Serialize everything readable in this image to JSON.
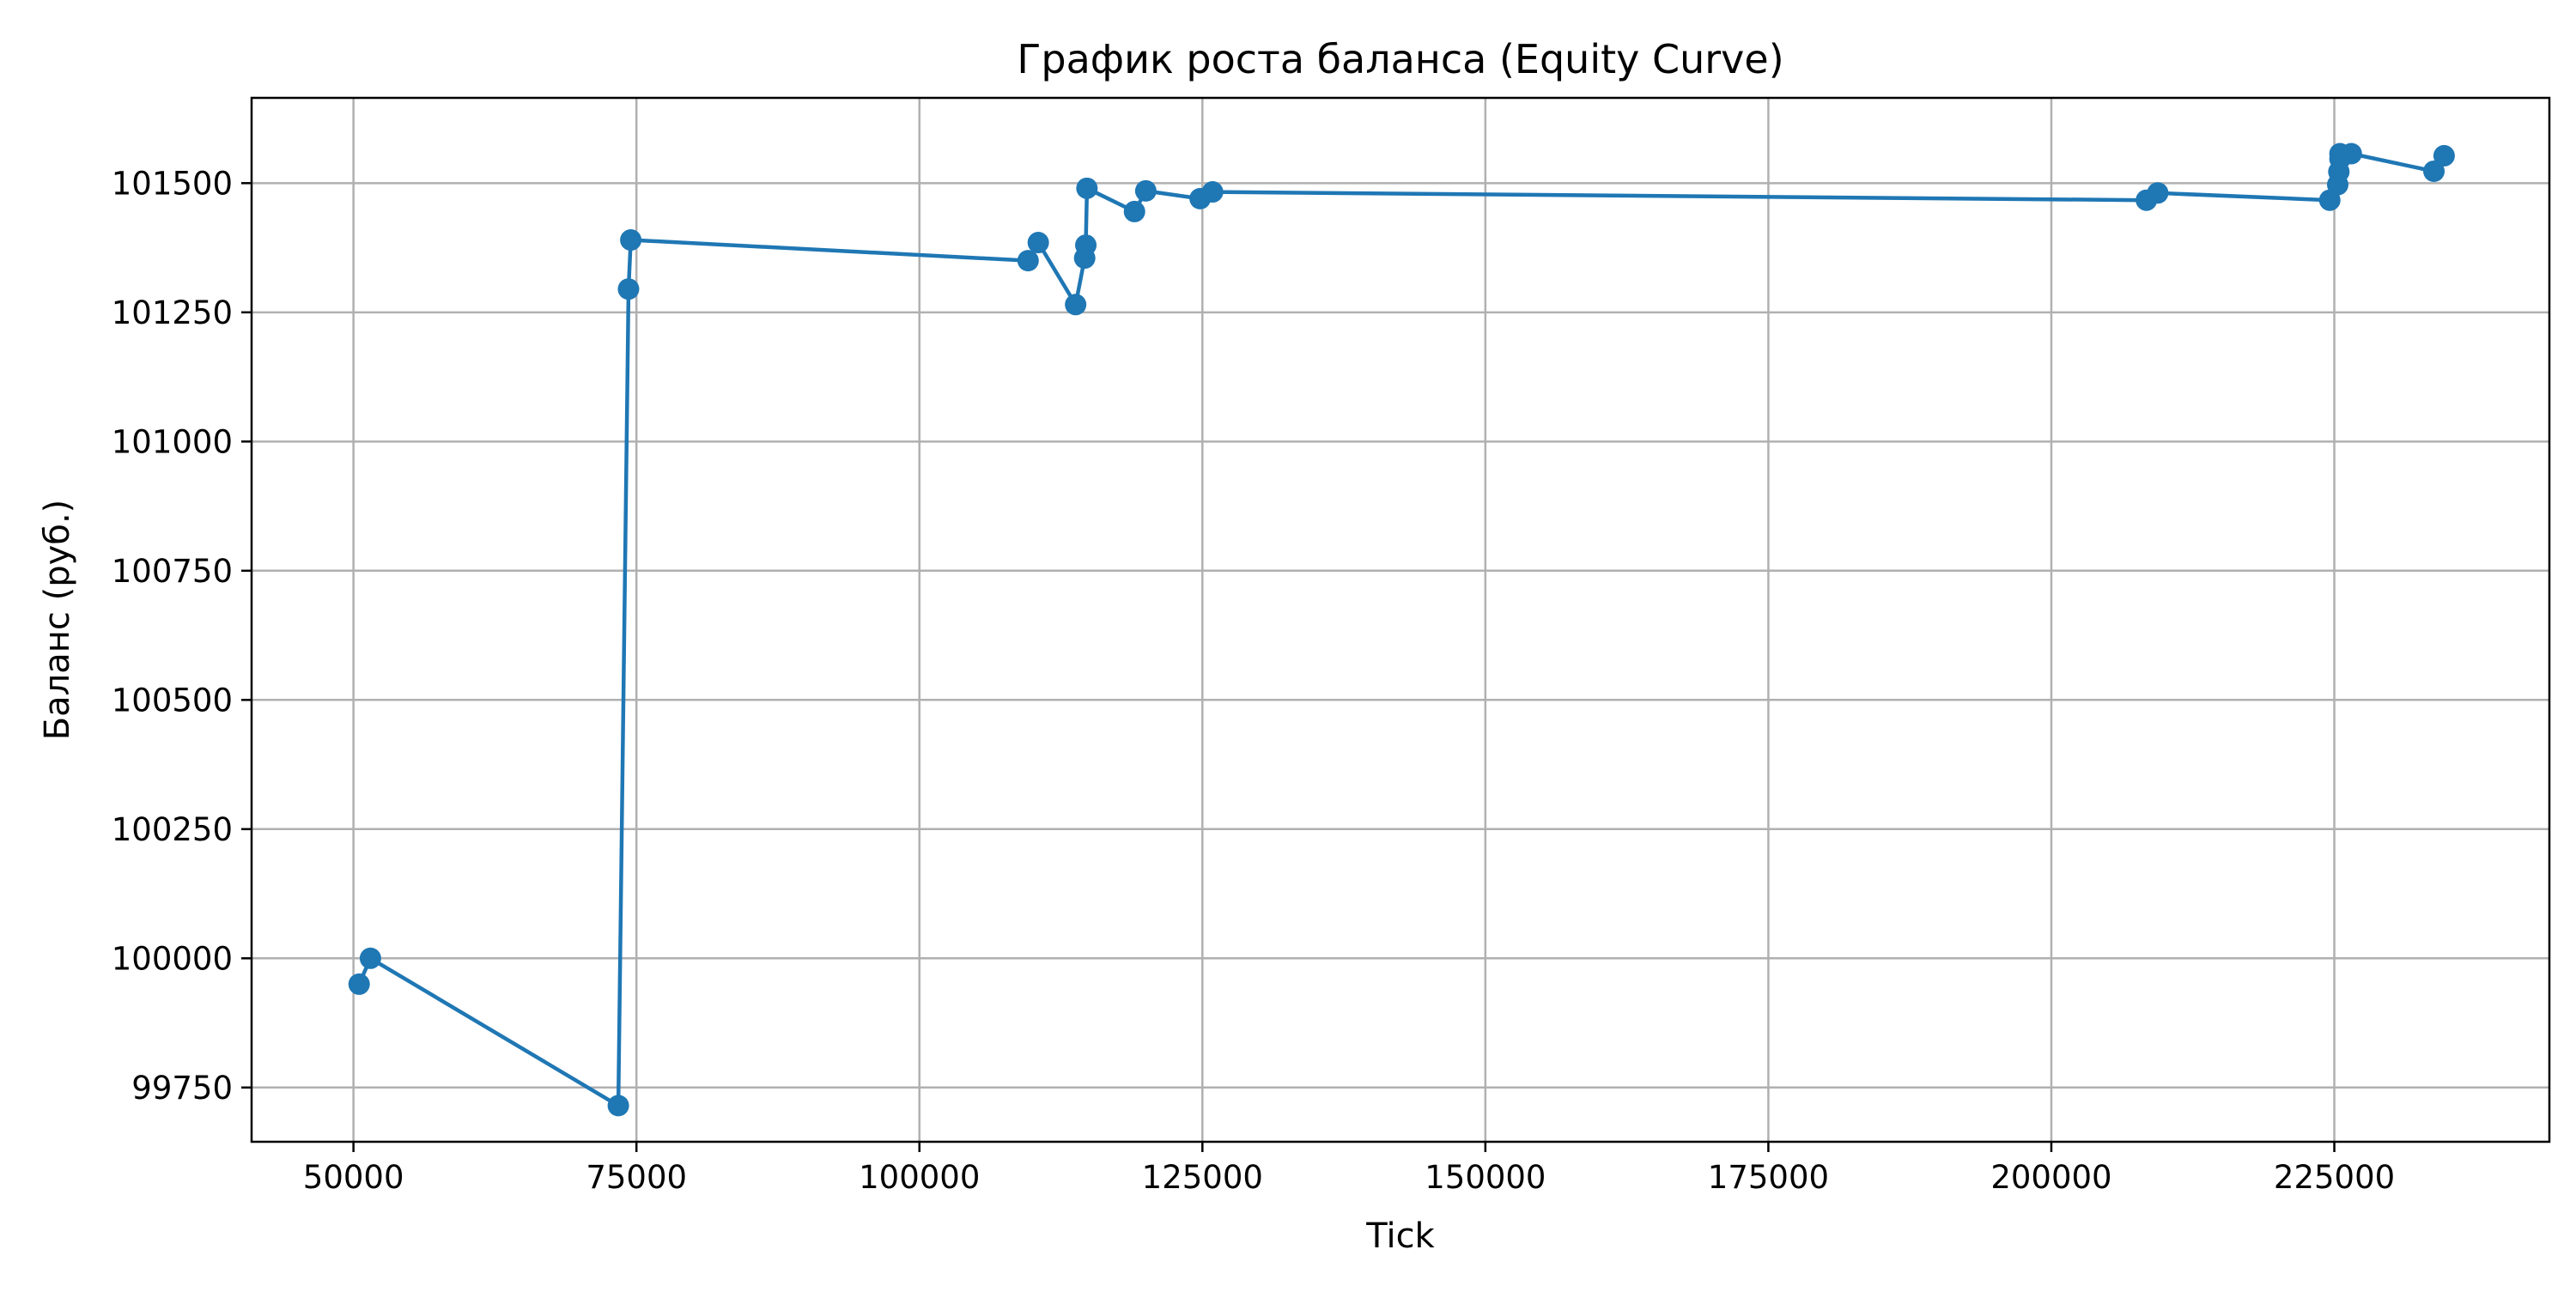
{
  "chart_data": {
    "type": "line",
    "title": "График роста баланса (Equity Curve)",
    "xlabel": "Tick",
    "ylabel": "Баланс (руб.)",
    "xlim": [
      41000,
      244000
    ],
    "ylim": [
      99645,
      101665
    ],
    "xticks": [
      50000,
      75000,
      100000,
      125000,
      150000,
      175000,
      200000,
      225000
    ],
    "yticks": [
      99750,
      100000,
      100250,
      100500,
      100750,
      101000,
      101250,
      101500
    ],
    "grid": true,
    "marker": "circle",
    "line_color": "#1f77b4",
    "series": [
      {
        "x": [
          50500,
          51500,
          73400,
          74300,
          74500,
          109600,
          110500,
          113800,
          114600,
          114700,
          114800,
          119000,
          120000,
          124800,
          125900,
          208400,
          209400,
          224600,
          225300,
          225400,
          225500,
          225500,
          226500,
          233800,
          234700
        ],
        "y": [
          99950,
          100000,
          99715,
          101295,
          101390,
          101350,
          101385,
          101265,
          101355,
          101380,
          101490,
          101445,
          101485,
          101470,
          101483,
          101467,
          101481,
          101467,
          101497,
          101522,
          101547,
          101557,
          101557,
          101523,
          101553
        ]
      }
    ]
  }
}
